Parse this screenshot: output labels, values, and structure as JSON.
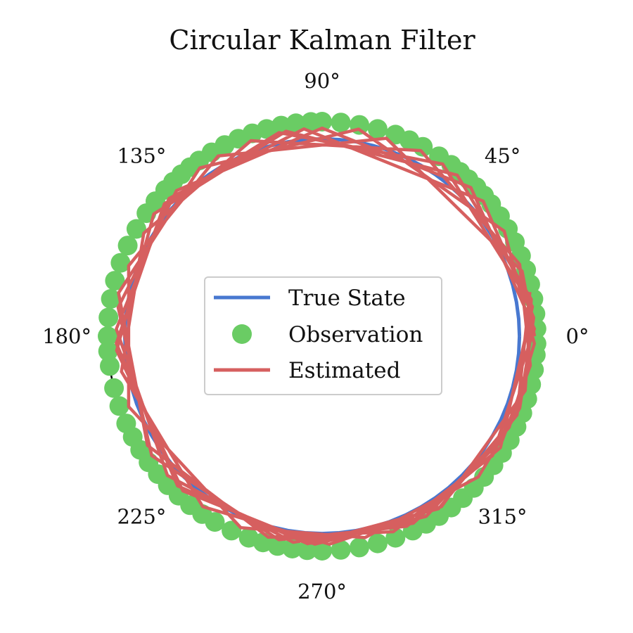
{
  "chart_data": {
    "type": "polar",
    "title": "Circular Kalman Filter",
    "angular_ticks": [
      "0°",
      "45°",
      "90°",
      "135°",
      "180°",
      "225°",
      "270°",
      "315°"
    ],
    "angular_tick_values": [
      0,
      45,
      90,
      135,
      180,
      225,
      270,
      315
    ],
    "grid": false,
    "legend_position": "center",
    "legend": [
      "True State",
      "Observation",
      "Estimated"
    ],
    "colors": {
      "true_state": "#4878d0",
      "observation": "#6acc64",
      "estimated": "#d65f5f"
    },
    "radius": 0.92,
    "series": [
      {
        "name": "True State",
        "kind": "line",
        "color": "#4878d0",
        "angles_deg": [
          0,
          5,
          10,
          15,
          20,
          25,
          30,
          35,
          40,
          45,
          50,
          55,
          60,
          65,
          70,
          75,
          80,
          85,
          90,
          95,
          100,
          105,
          110,
          115,
          120,
          125,
          130,
          135,
          140,
          145,
          150,
          155,
          160,
          165,
          170,
          175,
          180,
          185,
          190,
          195,
          200,
          205,
          210,
          215,
          220,
          225,
          230,
          235,
          240,
          245,
          250,
          255,
          260,
          265,
          270,
          275,
          280,
          285,
          290,
          295,
          300,
          305,
          310,
          315,
          320,
          325,
          330,
          335,
          340,
          345,
          350,
          355,
          360
        ]
      },
      {
        "name": "Observation",
        "kind": "scatter",
        "color": "#6acc64",
        "angles_deg": [
          2,
          6,
          10,
          14,
          18,
          22,
          26,
          30,
          34,
          38,
          41,
          44,
          47,
          50,
          53,
          57,
          62,
          66,
          70,
          75,
          80,
          85,
          90,
          93,
          97,
          101,
          105,
          109,
          113,
          117,
          121,
          125,
          128,
          131,
          134,
          137,
          141,
          145,
          150,
          155,
          160,
          165,
          170,
          175,
          180,
          184,
          188,
          194,
          199,
          204,
          208,
          212,
          216,
          220,
          224,
          228,
          232,
          236,
          240,
          245,
          250,
          254,
          258,
          262,
          266,
          270,
          275,
          280,
          285,
          290,
          295,
          299,
          303,
          307,
          311,
          315,
          319,
          323,
          327,
          331,
          335,
          339,
          343,
          347,
          351,
          355,
          358
        ],
        "r": 1.0
      },
      {
        "name": "Estimated",
        "kind": "line",
        "color": "#d65f5f",
        "angles_deg": [
          0,
          18,
          72,
          120,
          160,
          200,
          247,
          282,
          318,
          340,
          5,
          40,
          95,
          138,
          178,
          222,
          262,
          296,
          330,
          352,
          20,
          62,
          110,
          150,
          190,
          235,
          272,
          305,
          345,
          10,
          50,
          100,
          144,
          184,
          228,
          268,
          300,
          334,
          358,
          30,
          80,
          126,
          168,
          212,
          255,
          290,
          325,
          2,
          45,
          90,
          135,
          172,
          215,
          258,
          294,
          328,
          8,
          55,
          102,
          140,
          182,
          226,
          266,
          304,
          338,
          12
        ],
        "r": [
          0.99,
          0.98,
          0.97,
          0.97,
          0.96,
          0.96,
          0.97,
          0.96,
          0.98,
          0.98,
          0.99,
          0.98,
          0.97,
          0.96,
          0.96,
          0.97,
          0.97,
          0.97,
          0.97,
          0.98,
          0.98,
          0.98,
          0.97,
          0.96,
          0.95,
          0.97,
          0.97,
          0.97,
          0.98,
          0.99,
          0.98,
          0.97,
          0.97,
          0.96,
          0.97,
          0.97,
          0.97,
          0.97,
          0.99,
          0.98,
          0.98,
          0.97,
          0.97,
          0.96,
          0.97,
          0.97,
          0.97,
          0.99,
          0.98,
          0.97,
          0.96,
          0.96,
          0.97,
          0.97,
          0.97,
          0.98,
          0.99,
          0.98,
          0.97,
          0.96,
          0.96,
          0.97,
          0.97,
          0.97,
          0.98,
          0.99
        ]
      }
    ]
  }
}
